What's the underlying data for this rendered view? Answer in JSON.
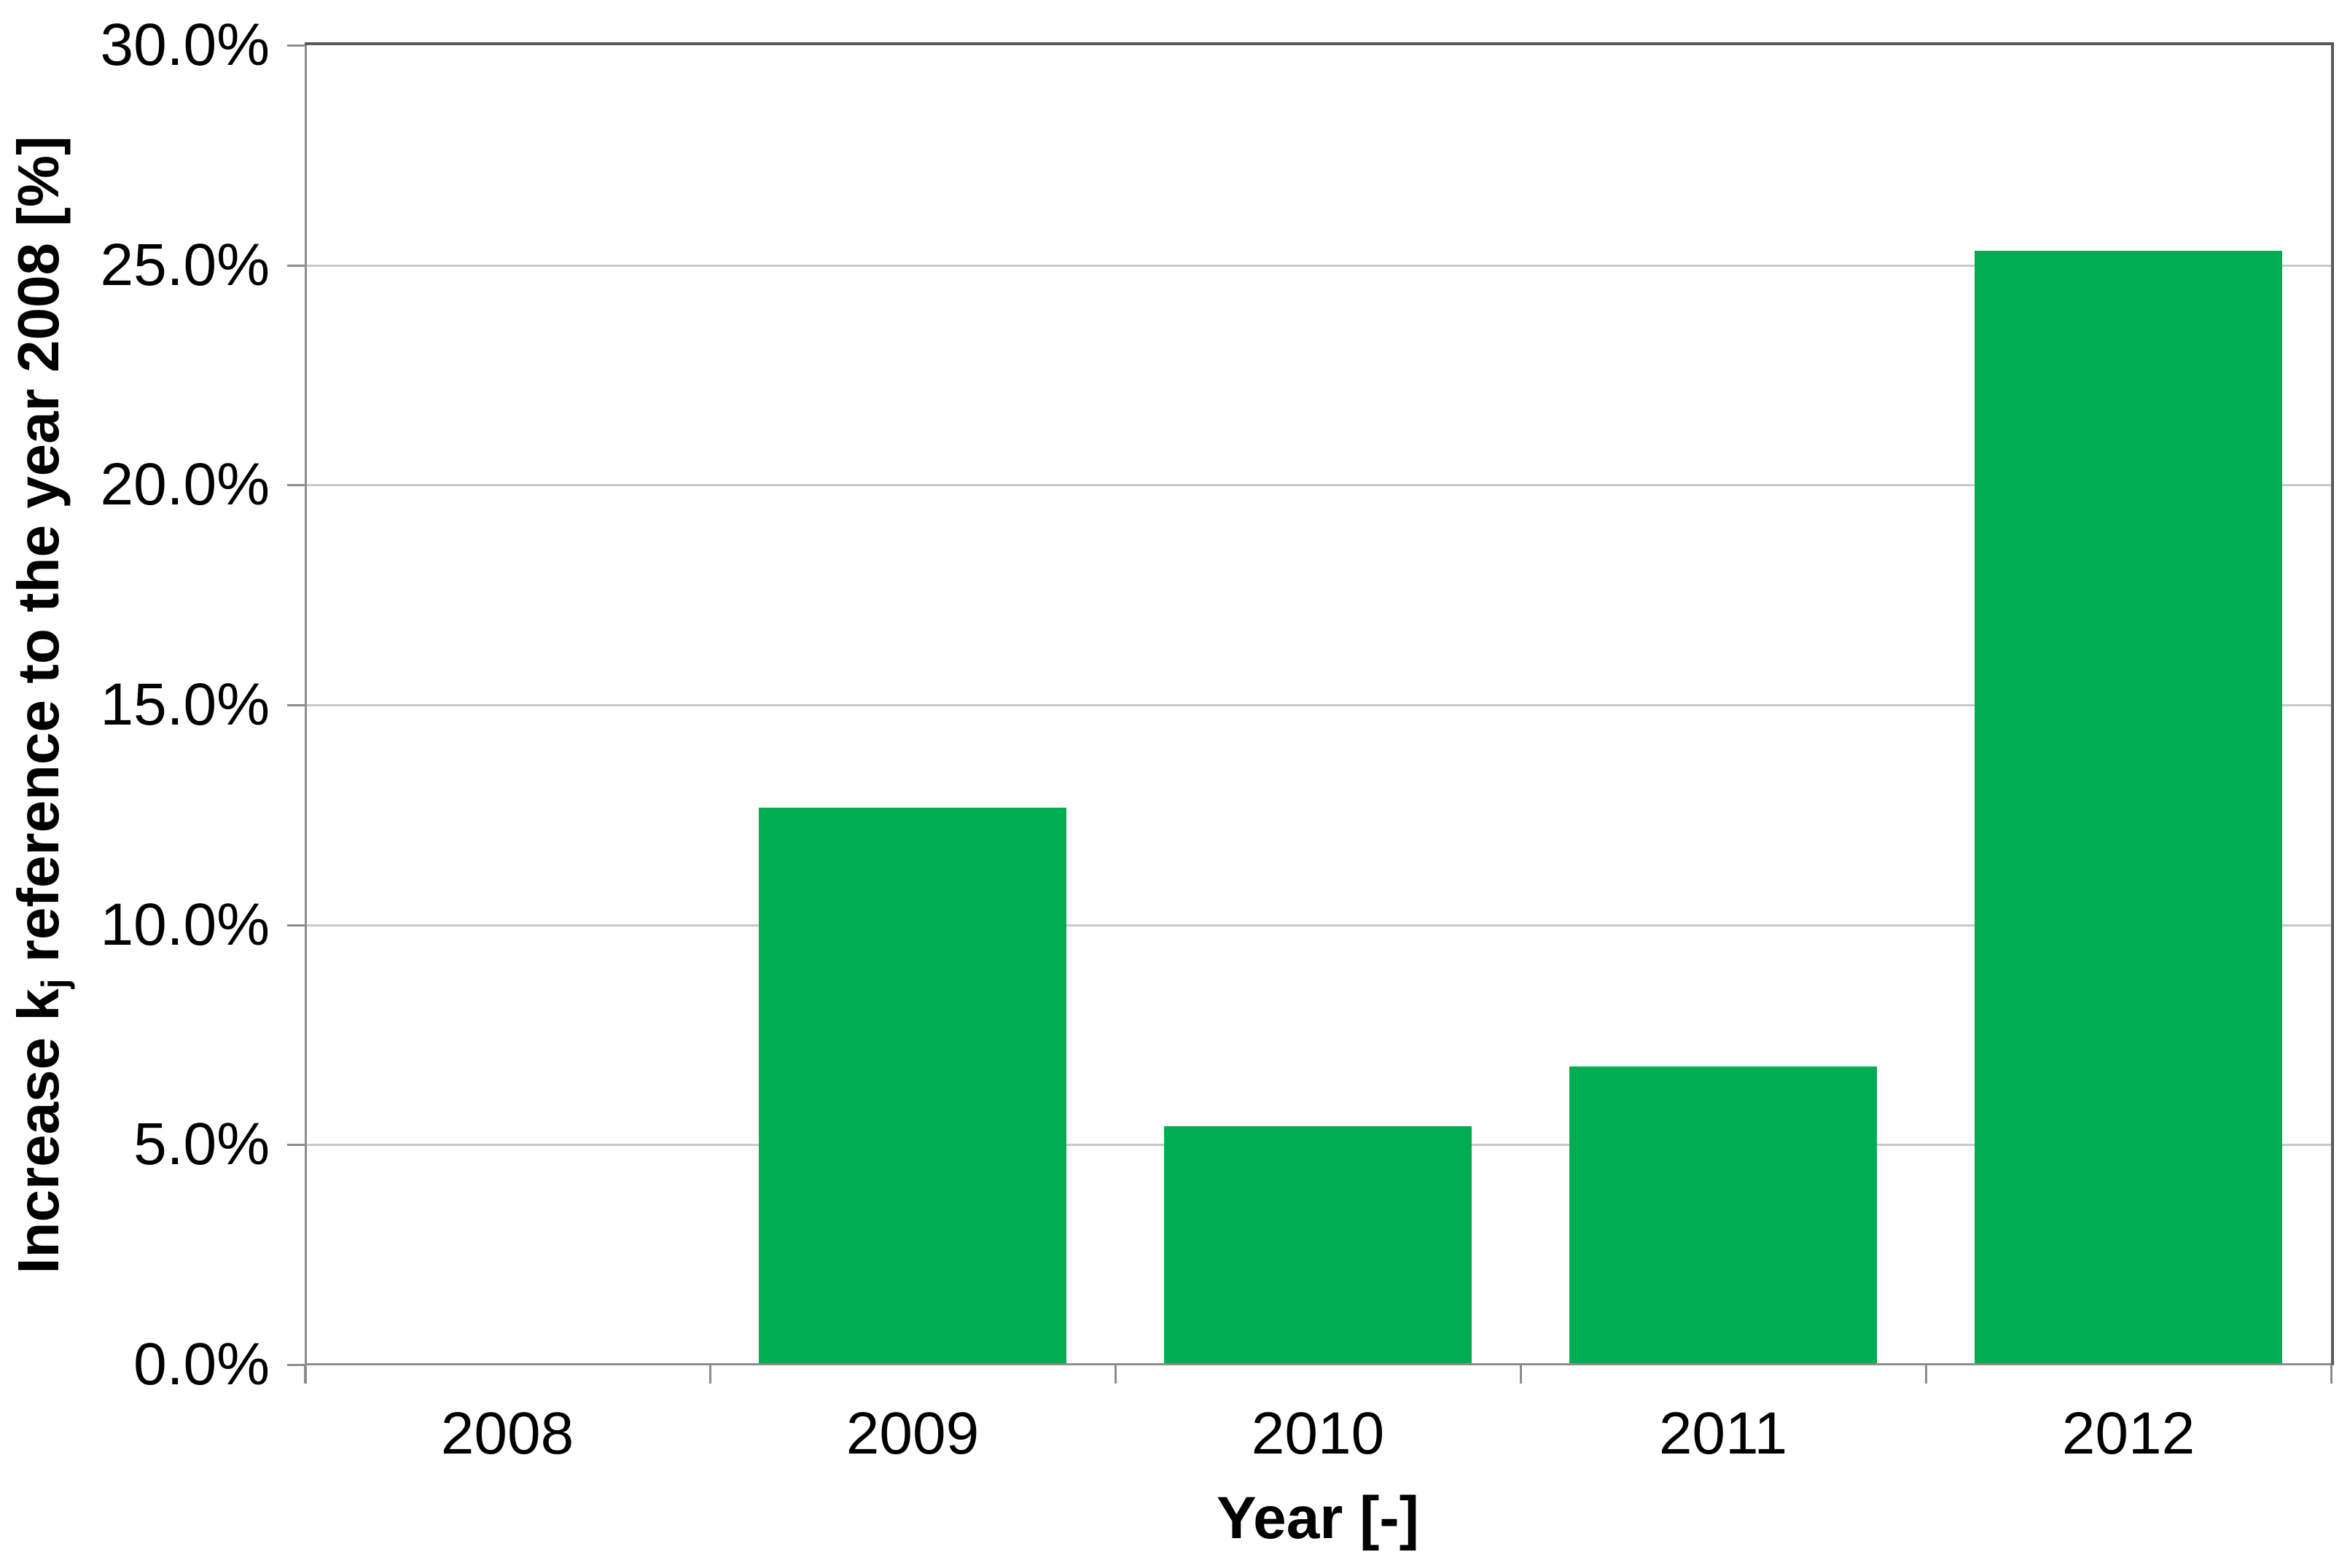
{
  "chart_data": {
    "type": "bar",
    "categories": [
      "2008",
      "2009",
      "2010",
      "2011",
      "2012"
    ],
    "values": [
      0.0,
      12.66,
      5.42,
      6.78,
      25.33
    ],
    "xlabel": "Year [-]",
    "ylabel_prefix": "Increase k",
    "ylabel_sub": "j",
    "ylabel_suffix": " reference to the year 2008 [%]",
    "ylim": [
      0,
      30
    ],
    "ytick_step": 5,
    "ytick_labels": [
      "0.0%",
      "5.0%",
      "10.0%",
      "15.0%",
      "20.0%",
      "25.0%",
      "30.0%"
    ],
    "grid": true,
    "legend": "none",
    "bar_color": "#00AC51",
    "gridline_color": "#C8C8C8",
    "axis_color": "#8C8C8C",
    "plot_border_color": "#595959",
    "text_color": "#000000",
    "background_color": "#FFFFFF"
  }
}
